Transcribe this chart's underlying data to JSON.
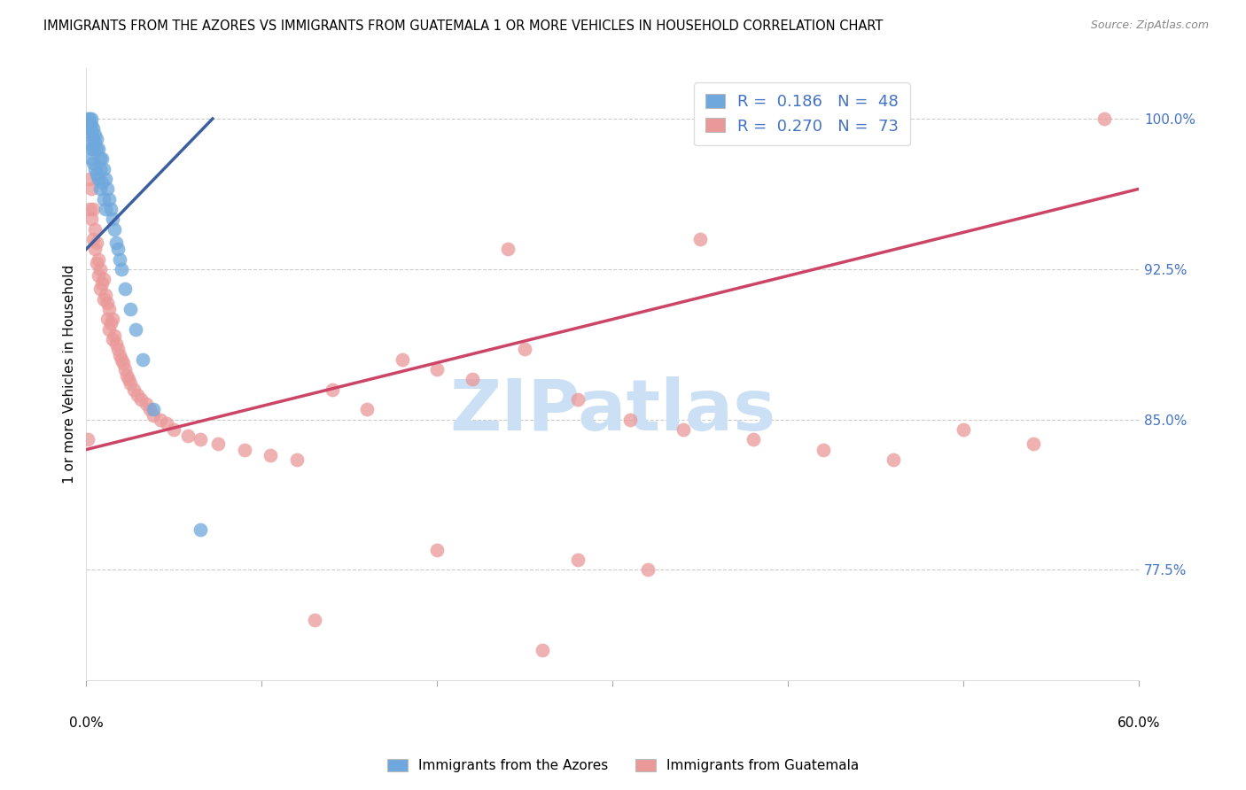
{
  "title": "IMMIGRANTS FROM THE AZORES VS IMMIGRANTS FROM GUATEMALA 1 OR MORE VEHICLES IN HOUSEHOLD CORRELATION CHART",
  "source": "Source: ZipAtlas.com",
  "ylabel": "1 or more Vehicles in Household",
  "legend_label_blue": "Immigrants from the Azores",
  "legend_label_pink": "Immigrants from Guatemala",
  "blue_color": "#6fa8dc",
  "pink_color": "#ea9999",
  "blue_line_color": "#3d5fa0",
  "pink_line_color": "#cc4466",
  "watermark": "ZIPatlas",
  "watermark_color": "#cce0f5",
  "xlim": [
    0.0,
    0.6
  ],
  "ylim": [
    72.0,
    102.5
  ],
  "ytick_positions": [
    77.5,
    85.0,
    92.5,
    100.0
  ],
  "blue_R": 0.186,
  "blue_N": 48,
  "pink_R": 0.27,
  "pink_N": 73,
  "blue_line_x": [
    0.0,
    0.072
  ],
  "blue_line_y": [
    93.5,
    100.0
  ],
  "pink_line_x": [
    0.0,
    0.6
  ],
  "pink_line_y": [
    83.5,
    96.5
  ],
  "blue_x": [
    0.001,
    0.001,
    0.001,
    0.002,
    0.002,
    0.002,
    0.002,
    0.003,
    0.003,
    0.003,
    0.003,
    0.003,
    0.004,
    0.004,
    0.004,
    0.004,
    0.005,
    0.005,
    0.005,
    0.006,
    0.006,
    0.006,
    0.007,
    0.007,
    0.008,
    0.008,
    0.008,
    0.009,
    0.009,
    0.01,
    0.01,
    0.011,
    0.011,
    0.012,
    0.013,
    0.014,
    0.015,
    0.016,
    0.017,
    0.018,
    0.019,
    0.02,
    0.022,
    0.025,
    0.028,
    0.032,
    0.038,
    0.065
  ],
  "blue_y": [
    100.0,
    99.8,
    99.5,
    100.0,
    99.8,
    99.5,
    98.8,
    100.0,
    99.7,
    99.3,
    98.5,
    98.0,
    99.5,
    99.0,
    98.5,
    97.8,
    99.2,
    98.8,
    97.5,
    99.0,
    98.5,
    97.2,
    98.5,
    97.0,
    98.0,
    97.5,
    96.5,
    98.0,
    96.8,
    97.5,
    96.0,
    97.0,
    95.5,
    96.5,
    96.0,
    95.5,
    95.0,
    94.5,
    93.8,
    93.5,
    93.0,
    92.5,
    91.5,
    90.5,
    89.5,
    88.0,
    85.5,
    79.5
  ],
  "pink_x": [
    0.001,
    0.002,
    0.002,
    0.003,
    0.003,
    0.004,
    0.004,
    0.005,
    0.005,
    0.006,
    0.006,
    0.007,
    0.007,
    0.008,
    0.008,
    0.009,
    0.01,
    0.01,
    0.011,
    0.012,
    0.012,
    0.013,
    0.013,
    0.014,
    0.015,
    0.015,
    0.016,
    0.017,
    0.018,
    0.019,
    0.02,
    0.021,
    0.022,
    0.023,
    0.024,
    0.025,
    0.027,
    0.029,
    0.031,
    0.034,
    0.036,
    0.038,
    0.042,
    0.046,
    0.05,
    0.058,
    0.065,
    0.075,
    0.09,
    0.105,
    0.12,
    0.14,
    0.16,
    0.18,
    0.2,
    0.22,
    0.25,
    0.28,
    0.31,
    0.34,
    0.38,
    0.42,
    0.46,
    0.5,
    0.54,
    0.24,
    0.28,
    0.32,
    0.35,
    0.2,
    0.26,
    0.13,
    0.58
  ],
  "pink_y": [
    84.0,
    97.0,
    95.5,
    96.5,
    95.0,
    95.5,
    94.0,
    94.5,
    93.5,
    93.8,
    92.8,
    93.0,
    92.2,
    92.5,
    91.5,
    91.8,
    92.0,
    91.0,
    91.2,
    90.8,
    90.0,
    90.5,
    89.5,
    89.8,
    90.0,
    89.0,
    89.2,
    88.8,
    88.5,
    88.2,
    88.0,
    87.8,
    87.5,
    87.2,
    87.0,
    86.8,
    86.5,
    86.2,
    86.0,
    85.8,
    85.5,
    85.2,
    85.0,
    84.8,
    84.5,
    84.2,
    84.0,
    83.8,
    83.5,
    83.2,
    83.0,
    86.5,
    85.5,
    88.0,
    87.5,
    87.0,
    88.5,
    86.0,
    85.0,
    84.5,
    84.0,
    83.5,
    83.0,
    84.5,
    83.8,
    93.5,
    78.0,
    77.5,
    94.0,
    78.5,
    73.5,
    75.0,
    100.0
  ]
}
